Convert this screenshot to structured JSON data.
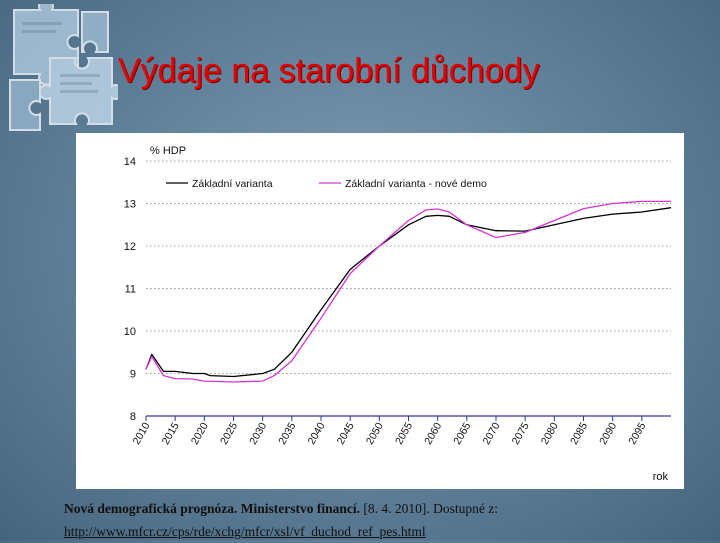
{
  "slide": {
    "title": "Výdaje na starobní důchody"
  },
  "source": {
    "bold_part": "Nová demografická prognóza. Ministerstvo financí.",
    "normal_part": " [8. 4. 2010]. Dostupné z:",
    "url": "http://www.mfcr.cz/cps/rde/xchg/mfcr/xsl/vf_duchod_ref_pes.html"
  },
  "colors": {
    "title": "#e00000",
    "series_base": "#000000",
    "series_new": "#d633d6",
    "axis": "#3333aa",
    "gridline": "#999999"
  },
  "icons": [
    "puzzle-pieces-icon"
  ],
  "chart_data": {
    "type": "line",
    "ylabel": "% HDP",
    "xlabel": "rok",
    "ylim": [
      8,
      14
    ],
    "xlim": [
      2010,
      2100
    ],
    "yticks": [
      "8",
      "9",
      "10",
      "11",
      "12",
      "13",
      "14"
    ],
    "xticks": [
      "2010",
      "2015",
      "2020",
      "2025",
      "2030",
      "2035",
      "2040",
      "2045",
      "2050",
      "2055",
      "2060",
      "2065",
      "2070",
      "2075",
      "2080",
      "2085",
      "2090",
      "2095"
    ],
    "grid": "horizontal dotted",
    "legend": "top",
    "series": [
      {
        "name": "Základní varianta",
        "x": [
          2010,
          2011,
          2013,
          2015,
          2018,
          2020,
          2021,
          2025,
          2030,
          2032,
          2035,
          2040,
          2045,
          2050,
          2055,
          2058,
          2060,
          2062,
          2065,
          2070,
          2075,
          2080,
          2085,
          2090,
          2095,
          2100
        ],
        "values": [
          9.1,
          9.45,
          9.05,
          9.05,
          9.0,
          9.0,
          8.95,
          8.93,
          9.0,
          9.1,
          9.5,
          10.5,
          11.45,
          12.0,
          12.5,
          12.7,
          12.72,
          12.7,
          12.5,
          12.36,
          12.35,
          12.5,
          12.65,
          12.75,
          12.8,
          12.9
        ]
      },
      {
        "name": "Základní varianta - nové demo",
        "x": [
          2010,
          2011,
          2013,
          2015,
          2018,
          2020,
          2025,
          2030,
          2032,
          2035,
          2040,
          2045,
          2050,
          2055,
          2058,
          2060,
          2062,
          2065,
          2070,
          2075,
          2080,
          2085,
          2090,
          2095,
          2100
        ],
        "values": [
          9.1,
          9.4,
          8.95,
          8.88,
          8.87,
          8.82,
          8.8,
          8.82,
          8.95,
          9.3,
          10.3,
          11.35,
          12.0,
          12.6,
          12.85,
          12.87,
          12.8,
          12.5,
          12.2,
          12.32,
          12.6,
          12.88,
          13.0,
          13.05,
          13.05
        ]
      }
    ]
  }
}
